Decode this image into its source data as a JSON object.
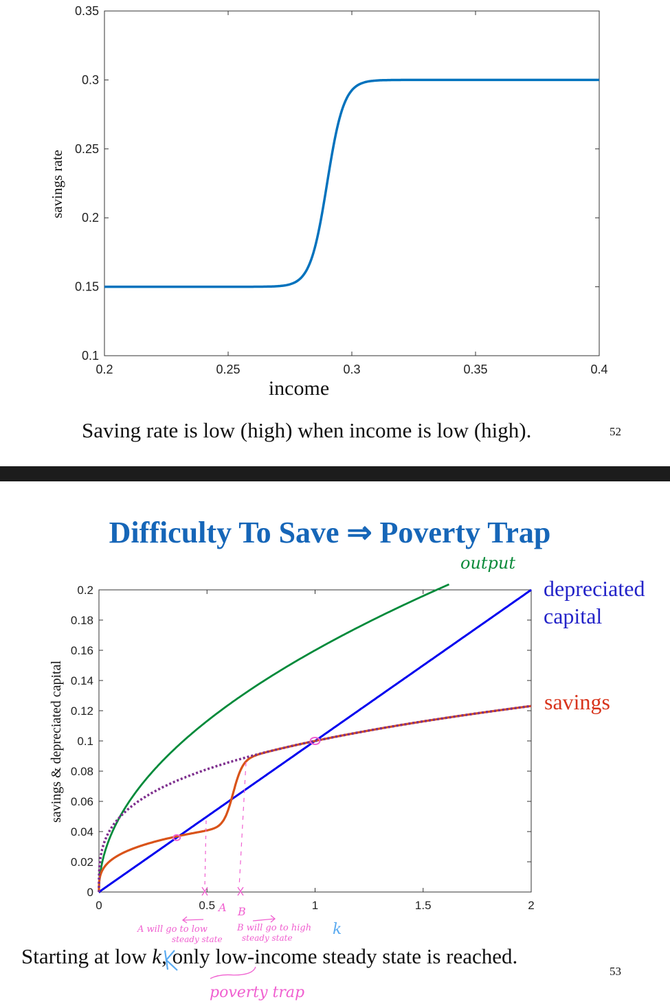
{
  "slide1": {
    "caption": "Saving rate is low (high) when income is low (high).",
    "page_number": "52"
  },
  "slide2": {
    "title": "Difficulty To Save ⇒ Poverty Trap",
    "caption_parts": [
      "Starting at low ",
      "k",
      ", only low-income steady state is reached."
    ],
    "page_number": "53",
    "annotations": {
      "output": "output",
      "A_label": "A",
      "B_label": "B",
      "A_note_1": "A will go to low",
      "A_note_2": "steady state",
      "B_note_1": "B will go to high",
      "B_note_2": "steady state",
      "k_mark": "k",
      "poverty_trap": "poverty trap",
      "color": "#f060d0",
      "k_highlight_color": "#5aaaf0"
    }
  },
  "chart_data": [
    {
      "type": "line",
      "title": "",
      "xlabel": "income",
      "ylabel": "savings rate",
      "xlim": [
        0.2,
        0.4
      ],
      "ylim": [
        0.1,
        0.35
      ],
      "xticks": [
        "0.2",
        "0.25",
        "0.3",
        "0.35",
        "0.4"
      ],
      "yticks": [
        "0.1",
        "0.15",
        "0.2",
        "0.25",
        "0.3",
        "0.35"
      ],
      "grid": false,
      "series": [
        {
          "color": "#0072bd",
          "x": [
            0.2,
            0.26,
            0.27,
            0.28,
            0.285,
            0.29,
            0.295,
            0.3,
            0.31,
            0.4
          ],
          "y": [
            0.15,
            0.15,
            0.1501,
            0.1543,
            0.1722,
            0.225,
            0.2778,
            0.2957,
            0.2999,
            0.3
          ]
        }
      ]
    },
    {
      "type": "line",
      "title": "",
      "xlabel": "",
      "ylabel": "savings & depreciated capital",
      "xlim": [
        0,
        2
      ],
      "ylim": [
        0,
        0.2
      ],
      "xticks": [
        "0",
        "0.5",
        "1",
        "1.5",
        "2"
      ],
      "yticks": [
        "0",
        "0.02",
        "0.04",
        "0.06",
        "0.08",
        "0.1",
        "0.12",
        "0.14",
        "0.16",
        "0.18",
        "0.2"
      ],
      "grid": false,
      "series": [
        {
          "name": "depreciated capital",
          "color": "#0000ee",
          "style": "solid",
          "x": [
            0,
            2
          ],
          "y": [
            0,
            0.2
          ]
        },
        {
          "name": "savings",
          "color": "#d95319",
          "style": "solid",
          "x": [
            0,
            0.1,
            0.2,
            0.36,
            0.5,
            0.56,
            0.6,
            0.62,
            0.65,
            0.7,
            0.8,
            1.0,
            1.5,
            2.0
          ],
          "y": [
            0,
            0.025,
            0.031,
            0.036,
            0.041,
            0.047,
            0.061,
            0.068,
            0.084,
            0.09,
            0.094,
            0.1,
            0.113,
            0.123
          ]
        },
        {
          "color": "#7e2f8e",
          "style": "dotted",
          "x": [
            0,
            0.05,
            0.1,
            0.2,
            0.36,
            0.5,
            0.7,
            1.0,
            1.5,
            2.0
          ],
          "y": [
            0,
            0.041,
            0.05,
            0.062,
            0.074,
            0.081,
            0.09,
            0.1,
            0.113,
            0.123
          ]
        },
        {
          "name": "output",
          "color": "#008a3a",
          "style": "solid",
          "x": [
            0,
            0.05,
            0.1,
            0.25,
            0.5,
            0.75,
            1.0,
            1.25,
            1.5,
            1.62
          ],
          "y": [
            0,
            0.036,
            0.051,
            0.08,
            0.113,
            0.139,
            0.16,
            0.179,
            0.196,
            0.204
          ]
        }
      ],
      "legend_labels": {
        "depreciated": "depreciated\ncapital",
        "savings": "savings"
      },
      "legend_colors": {
        "depreciated": "#2323c8",
        "savings": "#d8341c"
      }
    }
  ]
}
